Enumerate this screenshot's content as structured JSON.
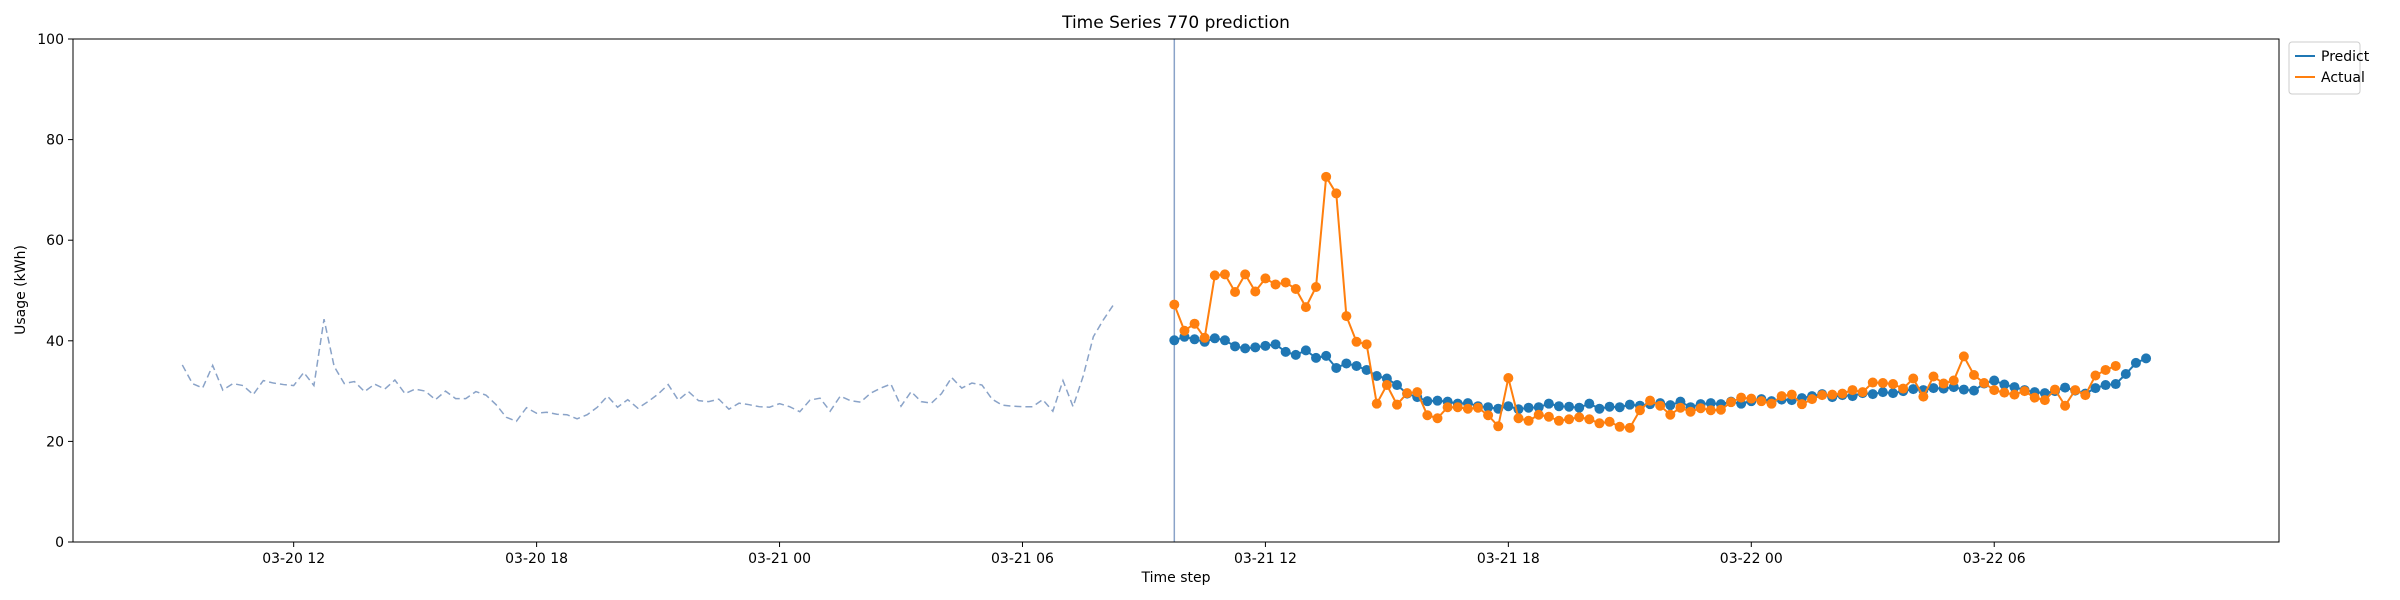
{
  "chart_data": {
    "type": "line",
    "title": "Time Series 770 prediction",
    "xlabel": "Time step",
    "ylabel": "Usage (kWh)",
    "ylim": [
      0,
      100
    ],
    "yticks": [
      0,
      20,
      40,
      60,
      80,
      100
    ],
    "xlim": [
      "2024-03-20 06:33",
      "2024-03-22 13:02"
    ],
    "xticks": [
      {
        "t": "2024-03-20 12:00",
        "label": "03-20 12"
      },
      {
        "t": "2024-03-20 18:00",
        "label": "03-20 18"
      },
      {
        "t": "2024-03-21 00:00",
        "label": "03-21 00"
      },
      {
        "t": "2024-03-21 06:00",
        "label": "03-21 06"
      },
      {
        "t": "2024-03-21 12:00",
        "label": "03-21 12"
      },
      {
        "t": "2024-03-21 18:00",
        "label": "03-21 18"
      },
      {
        "t": "2024-03-22 00:00",
        "label": "03-22 00"
      },
      {
        "t": "2024-03-22 06:00",
        "label": "03-22 06"
      }
    ],
    "grid": false,
    "legend_position": "outside-top-right",
    "forecast_start": "2024-03-21 09:45",
    "series": [
      {
        "name": "",
        "role": "history",
        "color": "#8aa3c8",
        "style": "dashed",
        "start": "2024-03-20 09:15",
        "step_minutes": 15,
        "values": [
          35.2,
          31.5,
          30.6,
          35.1,
          30.2,
          31.5,
          31.1,
          29.3,
          32.1,
          31.6,
          31.3,
          31.1,
          33.7,
          31.1,
          44.3,
          34.9,
          31.5,
          31.9,
          29.9,
          31.4,
          30.4,
          32.2,
          29.5,
          30.4,
          30.0,
          28.3,
          30.0,
          28.5,
          28.5,
          29.9,
          29.2,
          27.3,
          24.8,
          24.0,
          26.7,
          25.6,
          25.8,
          25.4,
          25.3,
          24.5,
          25.3,
          26.8,
          29.0,
          26.8,
          28.3,
          26.6,
          27.9,
          29.4,
          31.3,
          28.2,
          29.9,
          28.1,
          27.9,
          28.4,
          26.4,
          27.6,
          27.3,
          26.9,
          26.8,
          27.5,
          26.9,
          25.9,
          28.2,
          28.6,
          26.0,
          29.0,
          28.1,
          27.8,
          29.6,
          30.6,
          31.4,
          27.0,
          29.9,
          27.9,
          27.6,
          29.5,
          32.7,
          30.6,
          31.6,
          31.2,
          28.4,
          27.2,
          27.0,
          26.9,
          26.9,
          28.3,
          26.0,
          32.1,
          26.9,
          33.0,
          40.8,
          44.2,
          47.2
        ]
      },
      {
        "name": "Predict",
        "role": "forecast",
        "color": "#1f77b4",
        "start": "2024-03-21 09:45",
        "step_minutes": 15,
        "values": [
          40.1,
          40.8,
          40.3,
          39.8,
          40.5,
          40.1,
          38.9,
          38.5,
          38.7,
          39.0,
          39.3,
          37.8,
          37.2,
          38.1,
          36.6,
          37.0,
          34.6,
          35.5,
          35.0,
          34.2,
          33.0,
          32.5,
          31.2,
          29.5,
          28.8,
          28.0,
          28.1,
          27.9,
          27.5,
          27.6,
          27.0,
          26.8,
          26.5,
          27.0,
          26.4,
          26.7,
          26.8,
          27.5,
          27.0,
          26.9,
          26.7,
          27.5,
          26.5,
          26.9,
          26.8,
          27.3,
          27.1,
          27.4,
          27.6,
          27.2,
          27.9,
          26.8,
          27.4,
          27.6,
          27.4,
          27.9,
          27.5,
          28.0,
          28.4,
          28.0,
          28.3,
          28.2,
          28.6,
          29.0,
          29.4,
          28.8,
          29.2,
          29.0,
          29.6,
          29.4,
          29.8,
          29.6,
          30.0,
          30.4,
          30.2,
          30.6,
          30.5,
          30.8,
          30.3,
          30.1,
          31.5,
          32.1,
          31.3,
          30.8,
          30.2,
          29.8,
          29.6,
          30.0,
          30.7,
          30.1,
          29.5,
          30.6,
          31.2,
          31.4,
          33.4,
          35.6,
          36.5
        ]
      },
      {
        "name": "Actual",
        "role": "actual",
        "color": "#ff7f0e",
        "start": "2024-03-21 09:45",
        "step_minutes": 15,
        "values": [
          47.2,
          42.0,
          43.4,
          40.6,
          53.0,
          53.2,
          49.7,
          53.2,
          49.8,
          52.4,
          51.2,
          51.6,
          50.3,
          46.7,
          50.7,
          72.6,
          69.3,
          44.9,
          39.8,
          39.3,
          27.5,
          31.2,
          27.3,
          29.6,
          29.8,
          25.2,
          24.6,
          26.8,
          26.8,
          26.5,
          26.7,
          25.2,
          23.0,
          32.6,
          24.6,
          24.1,
          25.3,
          24.9,
          24.1,
          24.4,
          24.8,
          24.4,
          23.6,
          23.9,
          22.9,
          22.7,
          26.2,
          28.1,
          27.1,
          25.3,
          26.7,
          25.9,
          26.6,
          26.2,
          26.3,
          27.8,
          28.7,
          28.5,
          28.0,
          27.5,
          29.0,
          29.3,
          27.4,
          28.4,
          29.2,
          29.3,
          29.5,
          30.2,
          29.8,
          31.7,
          31.6,
          31.4,
          30.5,
          32.5,
          28.9,
          32.9,
          31.5,
          32.1,
          36.9,
          33.2,
          31.6,
          30.2,
          29.7,
          29.3,
          30.0,
          28.7,
          28.2,
          30.3,
          27.1,
          30.2,
          29.2,
          33.1,
          34.2,
          35.0
        ]
      }
    ]
  }
}
